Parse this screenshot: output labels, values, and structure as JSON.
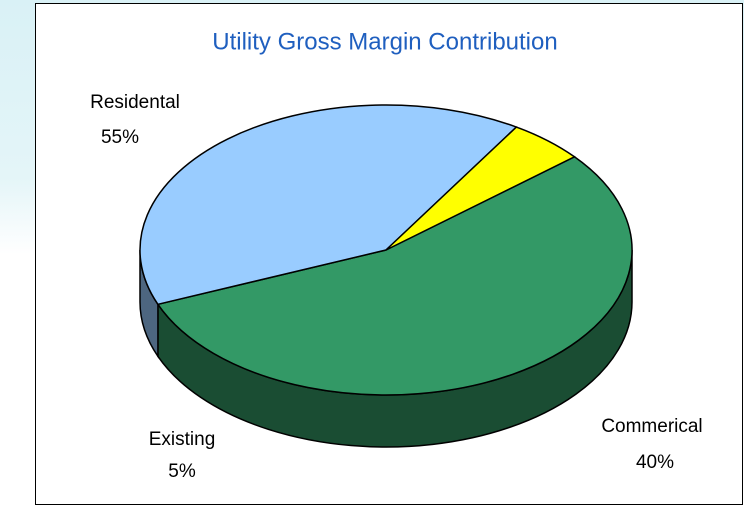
{
  "chart_data": {
    "type": "pie",
    "title": "Utility Gross Margin Contribution",
    "categories": [
      "Residental",
      "Commerical",
      "Existing"
    ],
    "values": [
      55,
      40,
      5
    ],
    "value_labels": [
      "55%",
      "40%",
      "5%"
    ],
    "colors": [
      "#339966",
      "#99ccff",
      "#ffff00"
    ]
  }
}
